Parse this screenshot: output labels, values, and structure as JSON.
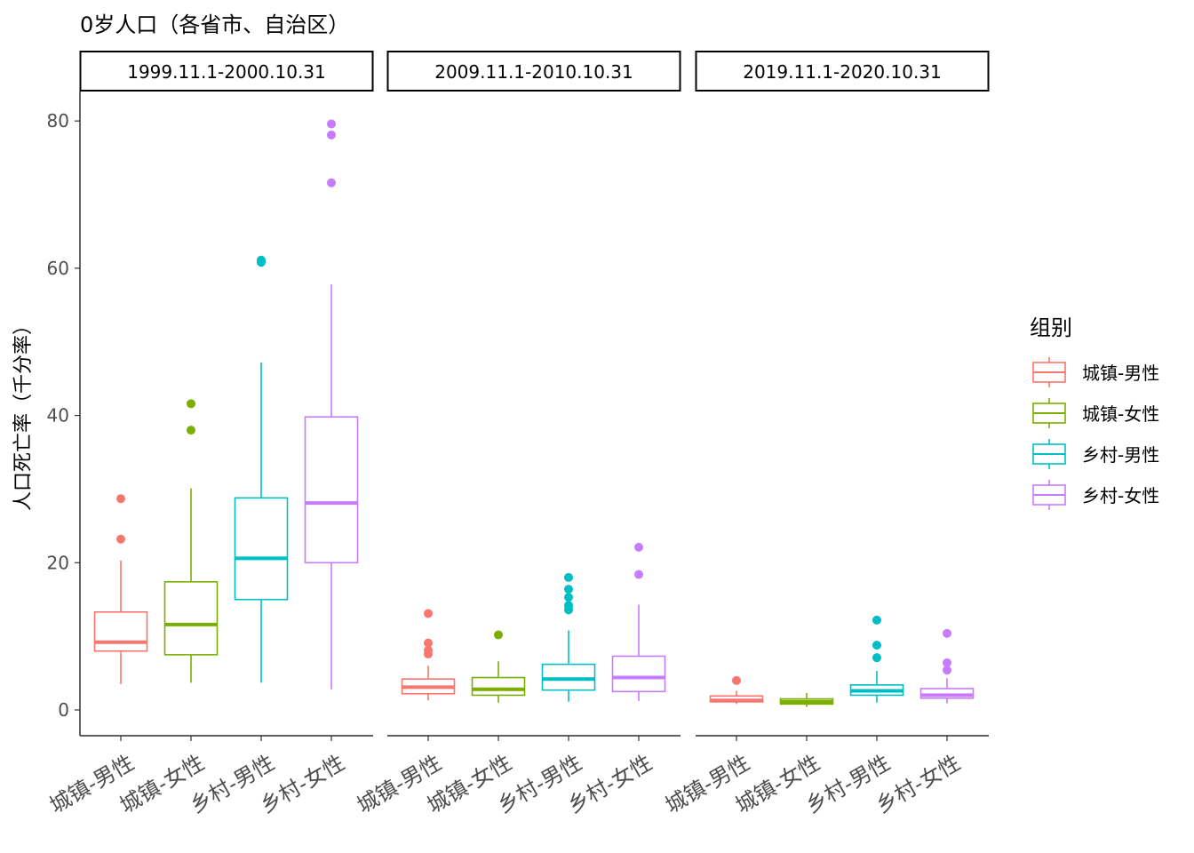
{
  "chart_data": {
    "type": "boxplot",
    "title": "0岁人口（各省市、自治区）",
    "ylabel": "人口死亡率（千分率）",
    "xlabel": "",
    "ylim": [
      -3.5,
      84
    ],
    "yticks": [
      0,
      20,
      40,
      60,
      80
    ],
    "grid": false,
    "legend": {
      "title": "组别",
      "position": "right"
    },
    "series_colors": {
      "城镇-男性": "#F8766D",
      "城镇-女性": "#7CAE00",
      "乡村-男性": "#00BFC4",
      "乡村-女性": "#C77CFF"
    },
    "categories": [
      "城镇-男性",
      "城镇-女性",
      "乡村-男性",
      "乡村-女性"
    ],
    "panels": [
      {
        "label": "1999.11.1-2000.10.31",
        "boxes": [
          {
            "group": "城镇-男性",
            "min": 3.5,
            "q1": 8.0,
            "median": 9.2,
            "q3": 13.3,
            "max": 20.3,
            "outliers": [
              23.2,
              28.7
            ]
          },
          {
            "group": "城镇-女性",
            "min": 3.7,
            "q1": 7.5,
            "median": 11.6,
            "q3": 17.4,
            "max": 30.1,
            "outliers": [
              38.0,
              41.6
            ]
          },
          {
            "group": "乡村-男性",
            "min": 3.7,
            "q1": 15.0,
            "median": 20.6,
            "q3": 28.8,
            "max": 47.2,
            "outliers": [
              60.8,
              61.1
            ]
          },
          {
            "group": "乡村-女性",
            "min": 2.8,
            "q1": 20.0,
            "median": 28.1,
            "q3": 39.8,
            "max": 57.8,
            "outliers": [
              71.6,
              78.1,
              79.6
            ]
          }
        ]
      },
      {
        "label": "2009.11.1-2010.10.31",
        "boxes": [
          {
            "group": "城镇-男性",
            "min": 1.3,
            "q1": 2.2,
            "median": 3.1,
            "q3": 4.2,
            "max": 6.0,
            "outliers": [
              7.6,
              8.1,
              9.1,
              13.1
            ]
          },
          {
            "group": "城镇-女性",
            "min": 1.0,
            "q1": 2.0,
            "median": 2.8,
            "q3": 4.4,
            "max": 6.6,
            "outliers": [
              10.2
            ]
          },
          {
            "group": "乡村-男性",
            "min": 1.1,
            "q1": 2.7,
            "median": 4.2,
            "q3": 6.2,
            "max": 10.8,
            "outliers": [
              13.6,
              14.2,
              15.3,
              16.4,
              18.0
            ]
          },
          {
            "group": "乡村-女性",
            "min": 1.2,
            "q1": 2.5,
            "median": 4.4,
            "q3": 7.3,
            "max": 14.3,
            "outliers": [
              18.4,
              22.1
            ]
          }
        ]
      },
      {
        "label": "2019.11.1-2020.10.31",
        "boxes": [
          {
            "group": "城镇-男性",
            "min": 0.8,
            "q1": 1.1,
            "median": 1.3,
            "q3": 1.9,
            "max": 2.6,
            "outliers": [
              4.0
            ]
          },
          {
            "group": "城镇-女性",
            "min": 0.4,
            "q1": 0.8,
            "median": 1.1,
            "q3": 1.5,
            "max": 2.3,
            "outliers": []
          },
          {
            "group": "乡村-男性",
            "min": 1.0,
            "q1": 2.0,
            "median": 2.6,
            "q3": 3.4,
            "max": 5.3,
            "outliers": [
              7.1,
              8.8,
              12.2
            ]
          },
          {
            "group": "乡村-女性",
            "min": 0.9,
            "q1": 1.6,
            "median": 2.0,
            "q3": 2.9,
            "max": 4.3,
            "outliers": [
              5.4,
              6.4,
              10.4
            ]
          }
        ]
      }
    ]
  }
}
